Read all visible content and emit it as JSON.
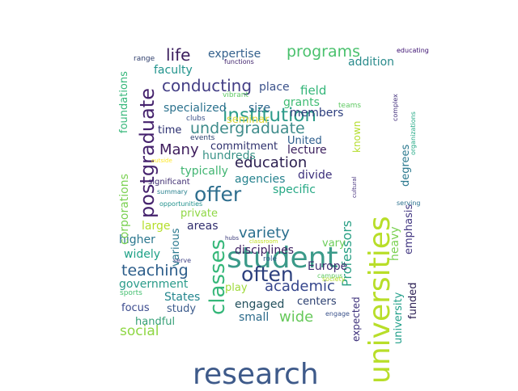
{
  "words": [
    {
      "text": "student",
      "color": "#3b9a89"
    },
    {
      "text": "research",
      "color": "#3e5a8a"
    },
    {
      "text": "universities",
      "color": "#b8de29"
    },
    {
      "text": "institution",
      "color": "#2c9b8a"
    },
    {
      "text": "postgraduate",
      "color": "#45226d"
    },
    {
      "text": "classes",
      "color": "#35b779"
    },
    {
      "text": "offer",
      "color": "#2e6e8e"
    },
    {
      "text": "often",
      "color": "#2c3f7d"
    },
    {
      "text": "conducting",
      "color": "#433e85"
    },
    {
      "text": "programs",
      "color": "#4ac16d"
    },
    {
      "text": "undergraduate",
      "color": "#3f8c8b"
    },
    {
      "text": "life",
      "color": "#3a1d5c"
    },
    {
      "text": "education",
      "color": "#2b1e4f"
    },
    {
      "text": "teaching",
      "color": "#2c5d8a"
    },
    {
      "text": "academic",
      "color": "#36468c"
    },
    {
      "text": "variety",
      "color": "#2a6f8e"
    },
    {
      "text": "wide",
      "color": "#66c95a"
    },
    {
      "text": "social",
      "color": "#8fd744"
    },
    {
      "text": "Many",
      "color": "#3d1c5c"
    },
    {
      "text": "Professors",
      "color": "#2aa085"
    },
    {
      "text": "university",
      "color": "#1f9e89"
    },
    {
      "text": "expertise",
      "color": "#34618d"
    },
    {
      "text": "faculty",
      "color": "#20938c"
    },
    {
      "text": "field",
      "color": "#34b679"
    },
    {
      "text": "grants",
      "color": "#3fbc73"
    },
    {
      "text": "place",
      "color": "#3b528b"
    },
    {
      "text": "specialized",
      "color": "#2c728e"
    },
    {
      "text": "size",
      "color": "#31688e"
    },
    {
      "text": "members",
      "color": "#2c3d7d"
    },
    {
      "text": "seminar",
      "color": "#e0d93b"
    },
    {
      "text": "time",
      "color": "#2a2e6f"
    },
    {
      "text": "commitment",
      "color": "#2d2f6c"
    },
    {
      "text": "lecture",
      "color": "#3b1f5d"
    },
    {
      "text": "United",
      "color": "#2b5c8c"
    },
    {
      "text": "hundreds",
      "color": "#3a9388"
    },
    {
      "text": "typically",
      "color": "#41b572"
    },
    {
      "text": "agencies",
      "color": "#26828e"
    },
    {
      "text": "divide",
      "color": "#3c2f7b"
    },
    {
      "text": "specific",
      "color": "#25a884"
    },
    {
      "text": "private",
      "color": "#8fd744"
    },
    {
      "text": "large",
      "color": "#b5de2b"
    },
    {
      "text": "areas",
      "color": "#312e6e"
    },
    {
      "text": "higher",
      "color": "#2a768e"
    },
    {
      "text": "widely",
      "color": "#1fa187"
    },
    {
      "text": "disciplines",
      "color": "#3e1f62"
    },
    {
      "text": "vary",
      "color": "#6ccd5a"
    },
    {
      "text": "Europe",
      "color": "#3e2c70"
    },
    {
      "text": "government",
      "color": "#2a9b8a"
    },
    {
      "text": "play",
      "color": "#9fda3a"
    },
    {
      "text": "States",
      "color": "#24868e"
    },
    {
      "text": "engaged",
      "color": "#23505d"
    },
    {
      "text": "centers",
      "color": "#2a3e6f"
    },
    {
      "text": "focus",
      "color": "#3b4b8e"
    },
    {
      "text": "study",
      "color": "#3c5b8c"
    },
    {
      "text": "small",
      "color": "#2b6a8a"
    },
    {
      "text": "handful",
      "color": "#37a078"
    },
    {
      "text": "addition",
      "color": "#2a8b8c"
    },
    {
      "text": "known",
      "color": "#b4dd2b"
    },
    {
      "text": "degrees",
      "color": "#2a788e"
    },
    {
      "text": "emphasis",
      "color": "#443983"
    },
    {
      "text": "heavy",
      "color": "#7ad151"
    },
    {
      "text": "funded",
      "color": "#2a1d52"
    },
    {
      "text": "expected",
      "color": "#3c2f7a"
    },
    {
      "text": "corporations",
      "color": "#7ad151"
    },
    {
      "text": "foundations",
      "color": "#35b779"
    },
    {
      "text": "various",
      "color": "#29788e"
    },
    {
      "text": "range",
      "color": "#2c3b6a"
    },
    {
      "text": "functions",
      "color": "#3e216b"
    },
    {
      "text": "educating",
      "color": "#3b0f70"
    },
    {
      "text": "complex",
      "color": "#46337e"
    },
    {
      "text": "organizations",
      "color": "#22a884"
    },
    {
      "text": "teams",
      "color": "#5ec962"
    },
    {
      "text": "vibrant",
      "color": "#5ec962"
    },
    {
      "text": "clubs",
      "color": "#3b528b"
    },
    {
      "text": "events",
      "color": "#2a3e6e"
    },
    {
      "text": "outside",
      "color": "#fde725"
    },
    {
      "text": "significant",
      "color": "#3e2c70"
    },
    {
      "text": "summary",
      "color": "#27808e"
    },
    {
      "text": "opportunities",
      "color": "#21918c"
    },
    {
      "text": "cultural",
      "color": "#46327e"
    },
    {
      "text": "serving",
      "color": "#2c718e"
    },
    {
      "text": "hubs",
      "color": "#3b3a7a"
    },
    {
      "text": "classroom",
      "color": "#c2df23"
    },
    {
      "text": "role",
      "color": "#355f8d"
    },
    {
      "text": "serve",
      "color": "#414487"
    },
    {
      "text": "campus",
      "color": "#5ec962"
    },
    {
      "text": "society",
      "color": "#b5de2b"
    },
    {
      "text": "engage",
      "color": "#3b528b"
    },
    {
      "text": "sports",
      "color": "#44bf70"
    }
  ]
}
